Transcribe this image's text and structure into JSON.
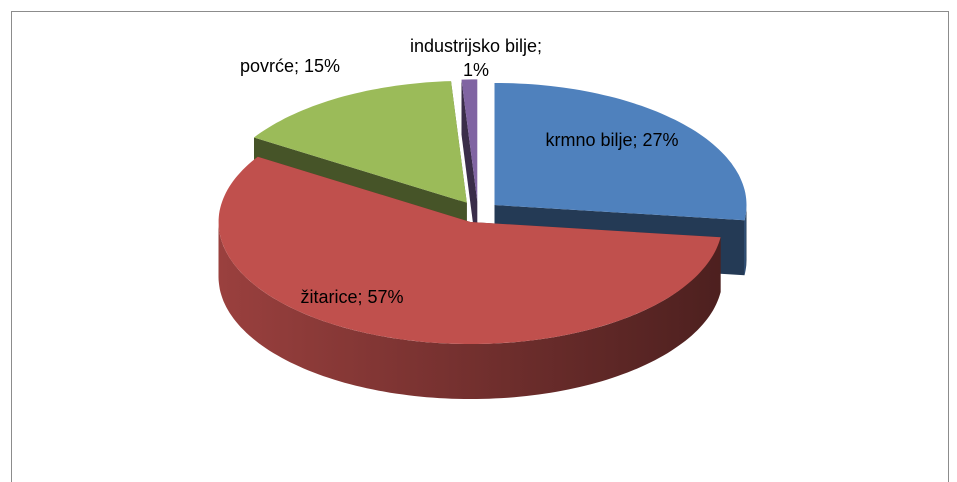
{
  "chart_data": {
    "type": "pie3d",
    "values": [
      27,
      57,
      15,
      1
    ],
    "value_labels": [
      "krmno bilje; 27%",
      "žitarice; 57%",
      "povrće; 15%",
      "industrijsko bilje; 1%"
    ],
    "colors": [
      "#4f81bd",
      "#c0504d",
      "#9bbb59",
      "#8064a2"
    ]
  }
}
